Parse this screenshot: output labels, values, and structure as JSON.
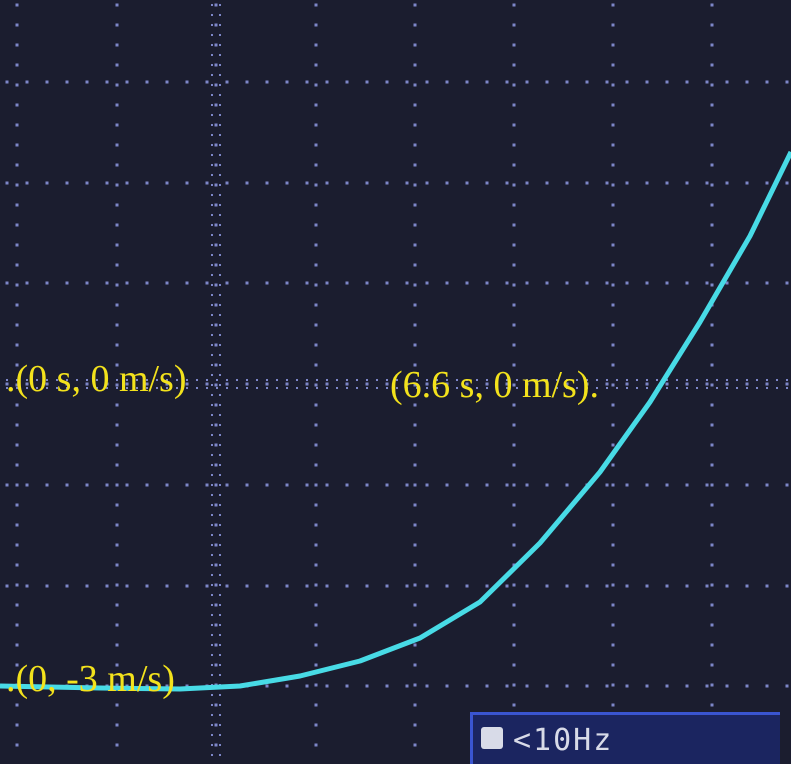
{
  "annotations": [
    ".(0 s, 0 m/s)",
    "(6.6 s, 0 m/s).",
    ".(0, -3 m/s)"
  ],
  "readout": "<10Hz"
}
